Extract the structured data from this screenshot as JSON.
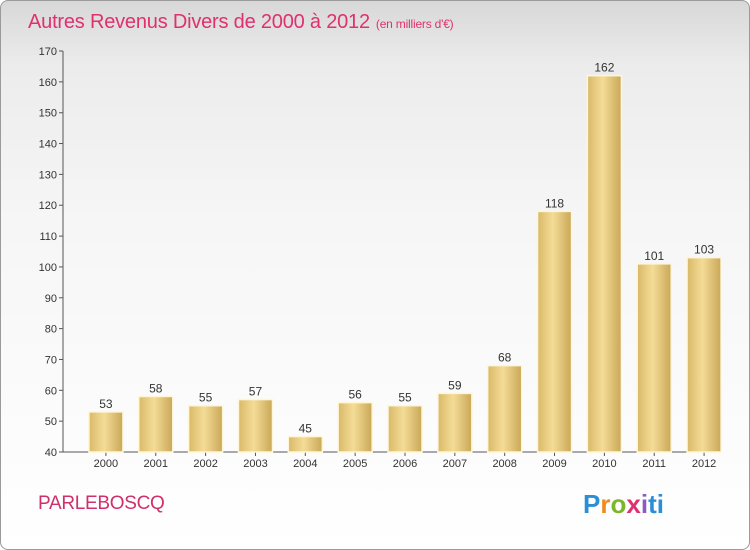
{
  "chart_data": {
    "type": "bar",
    "title": "Autres Revenus Divers de 2000 à 2012",
    "subtitle": "(en milliers d'€)",
    "categories": [
      "2000",
      "2001",
      "2002",
      "2003",
      "2004",
      "2005",
      "2006",
      "2007",
      "2008",
      "2009",
      "2010",
      "2011",
      "2012"
    ],
    "values": [
      53,
      58,
      55,
      57,
      45,
      56,
      55,
      59,
      68,
      118,
      162,
      101,
      103
    ],
    "ylim": [
      40,
      170
    ],
    "yticks": [
      40,
      50,
      60,
      70,
      80,
      90,
      100,
      110,
      120,
      130,
      140,
      150,
      160,
      170
    ],
    "grid": false,
    "bar_color": "#e8cf84"
  },
  "footer": {
    "commune": "PARLEBOSCQ",
    "logo": [
      "P",
      "r",
      "o",
      "x",
      "i",
      "ti"
    ]
  }
}
